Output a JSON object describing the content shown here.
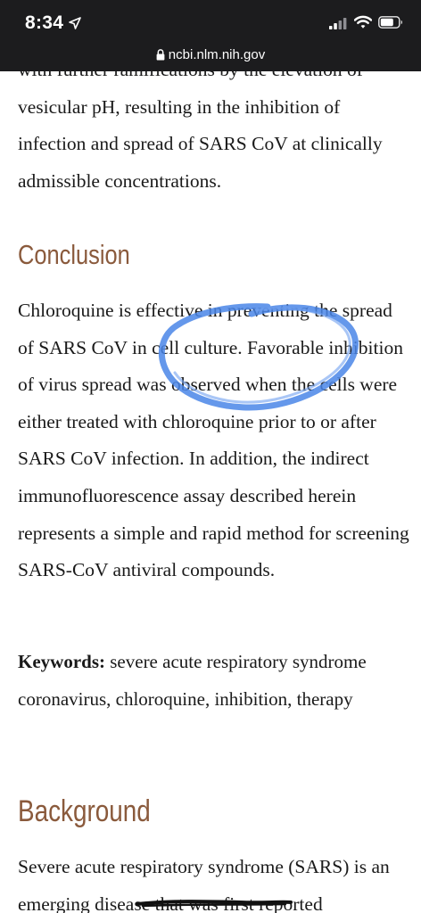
{
  "status_bar": {
    "time": "8:34",
    "url": "ncbi.nlm.nih.gov"
  },
  "article": {
    "intro_text": "with further ramifications by the elevation of vesicular pH, resulting in the inhibition of infection and spread of SARS CoV at clinically admissible concentrations.",
    "conclusion_heading": "Conclusion",
    "conclusion_text": "Chloroquine is effective in preventing the spread of SARS CoV in cell culture. Favorable inhibition of virus spread was observed when the cells were either treated with chloroquine prior to or after SARS CoV infection. In addition, the indirect immunofluorescence assay described herein represents a simple and rapid method for screening SARS-CoV antiviral compounds.",
    "keywords_label": "Keywords:",
    "keywords_text": "severe acute respiratory syndrome coronavirus, chloroquine, inhibition, therapy",
    "background_heading": "Background",
    "background_text": "Severe acute respiratory syndrome (SARS) is an emerging disease that was first reported"
  },
  "icons": {
    "location": "location-arrow-icon",
    "signal": "cellular-signal-icon",
    "wifi": "wifi-icon",
    "battery": "battery-icon",
    "lock": "lock-icon"
  },
  "colors": {
    "heading": "#8a5a3c",
    "annotation": "#4a86e8",
    "status_bar": "#1c1c1e"
  }
}
